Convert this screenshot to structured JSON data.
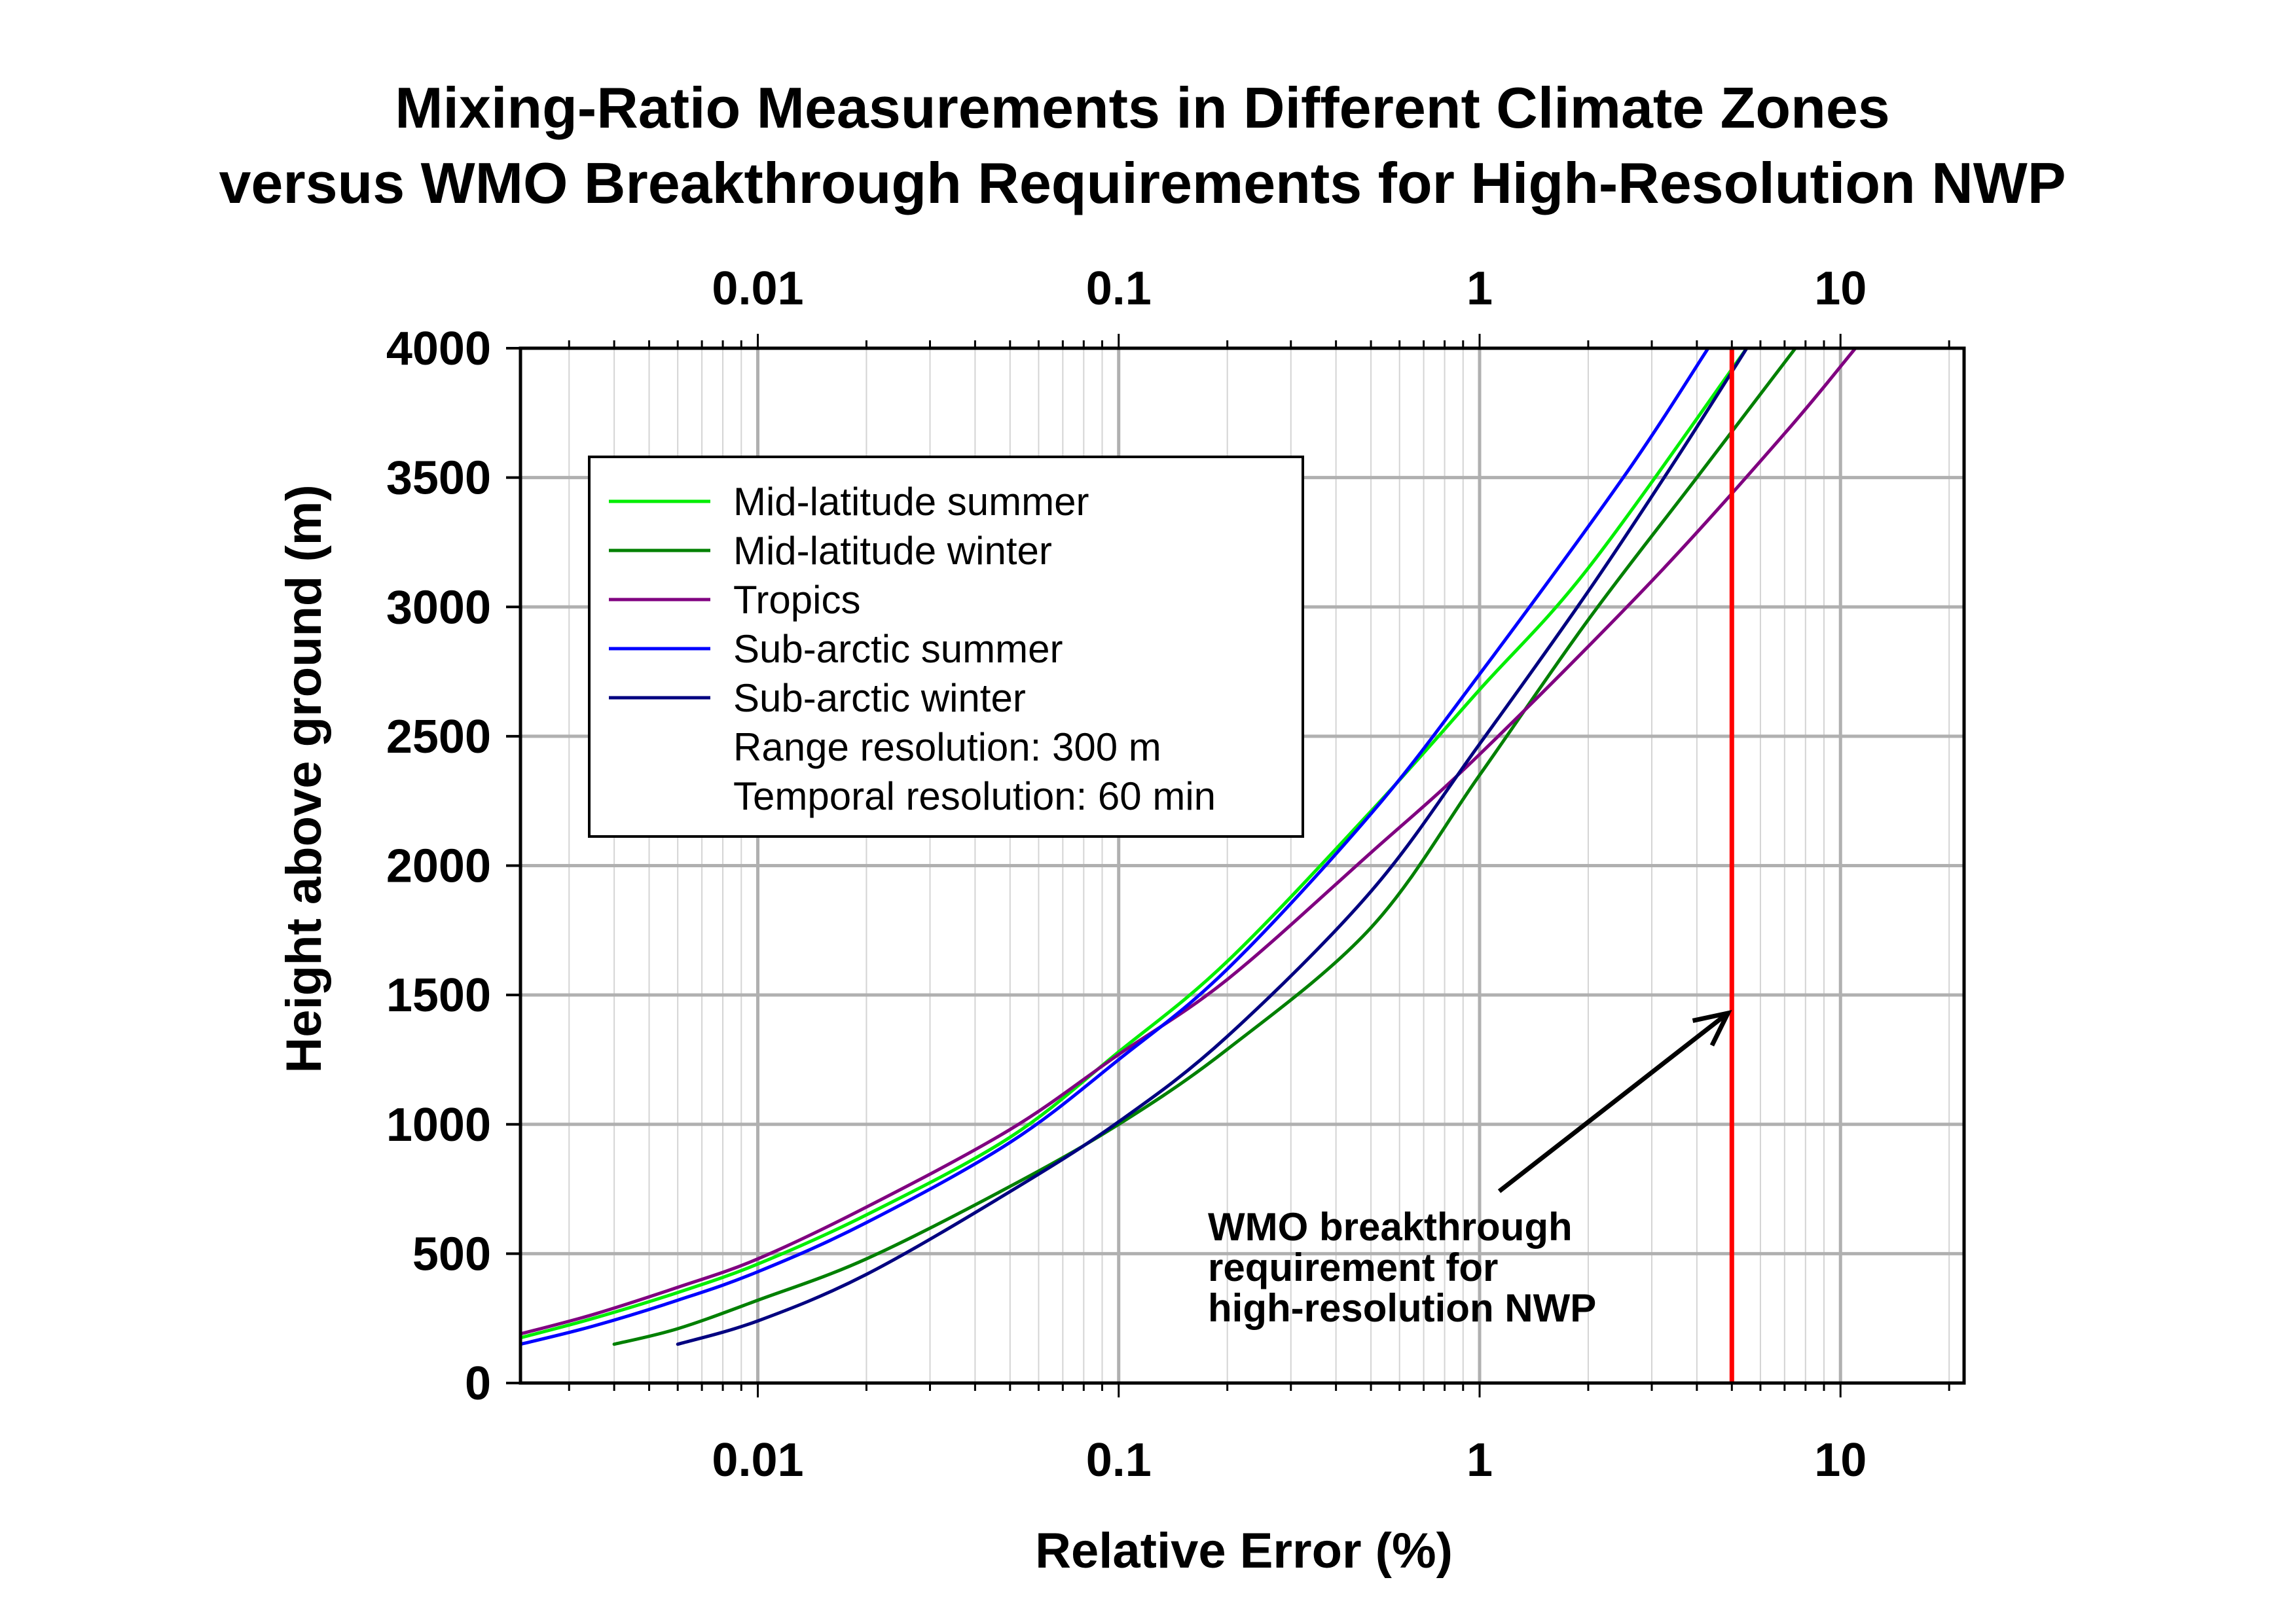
{
  "chart_data": {
    "type": "line",
    "title": "Mixing-Ratio Measurements in Different Climate Zones",
    "subtitle": "versus WMO Breakthrough Requirements for High-Resolution NWP",
    "xlabel": "Relative Error (%)",
    "ylabel": "Height above ground (m)",
    "xscale": "log",
    "xlim": [
      0.0022,
      22
    ],
    "ylim": [
      0,
      4000
    ],
    "x_ticks": [
      0.01,
      0.1,
      1,
      10
    ],
    "x_tick_labels": [
      "0.01",
      "0.1",
      "1",
      "10"
    ],
    "y_ticks": [
      0,
      500,
      1000,
      1500,
      2000,
      2500,
      3000,
      3500,
      4000
    ],
    "y_tick_labels": [
      "0",
      "500",
      "1000",
      "1500",
      "2000",
      "2500",
      "3000",
      "3500",
      "4000"
    ],
    "grid": true,
    "legend_position": "top-left",
    "series": [
      {
        "name": "Mid-latitude summer",
        "color": "#00ee00",
        "x": [
          0.0022,
          0.0035,
          0.006,
          0.01,
          0.02,
          0.05,
          0.1,
          0.2,
          0.5,
          1.0,
          2.0,
          5.5
        ],
        "y": [
          175,
          250,
          350,
          460,
          650,
          950,
          1280,
          1630,
          2210,
          2680,
          3150,
          4000
        ]
      },
      {
        "name": "Mid-latitude winter",
        "color": "#008000",
        "x": [
          0.004,
          0.006,
          0.01,
          0.02,
          0.05,
          0.1,
          0.2,
          0.5,
          1.0,
          2.0,
          4.0,
          7.5
        ],
        "y": [
          150,
          210,
          320,
          480,
          760,
          1000,
          1290,
          1760,
          2350,
          2950,
          3500,
          4000
        ]
      },
      {
        "name": "Tropics",
        "color": "#800080",
        "x": [
          0.0022,
          0.0035,
          0.006,
          0.01,
          0.02,
          0.05,
          0.1,
          0.2,
          0.5,
          1.0,
          3.0,
          7.0,
          11.0
        ],
        "y": [
          190,
          265,
          370,
          480,
          680,
          980,
          1270,
          1560,
          2050,
          2430,
          3100,
          3670,
          4000
        ]
      },
      {
        "name": "Sub-arctic summer",
        "color": "#0000ff",
        "x": [
          0.0022,
          0.0035,
          0.006,
          0.01,
          0.02,
          0.05,
          0.1,
          0.2,
          0.5,
          1.0,
          2.5,
          4.3
        ],
        "y": [
          150,
          220,
          320,
          430,
          620,
          930,
          1250,
          1600,
          2200,
          2740,
          3500,
          4000
        ]
      },
      {
        "name": "Sub-arctic winter",
        "color": "#000080",
        "x": [
          0.006,
          0.01,
          0.02,
          0.05,
          0.1,
          0.2,
          0.5,
          1.0,
          2.0,
          3.5,
          5.5
        ],
        "y": [
          150,
          240,
          420,
          740,
          1010,
          1340,
          1900,
          2470,
          3060,
          3570,
          4000
        ]
      }
    ],
    "legend_notes": [
      "Range resolution: 300 m",
      "Temporal resolution: 60 min"
    ],
    "reference_line": {
      "x": 5,
      "color": "#ff0000"
    },
    "annotation": {
      "lines": [
        "WMO breakthrough",
        "requirement for",
        "high-resolution NWP"
      ],
      "arrow_target": {
        "x": 5,
        "y": 1450
      }
    }
  }
}
